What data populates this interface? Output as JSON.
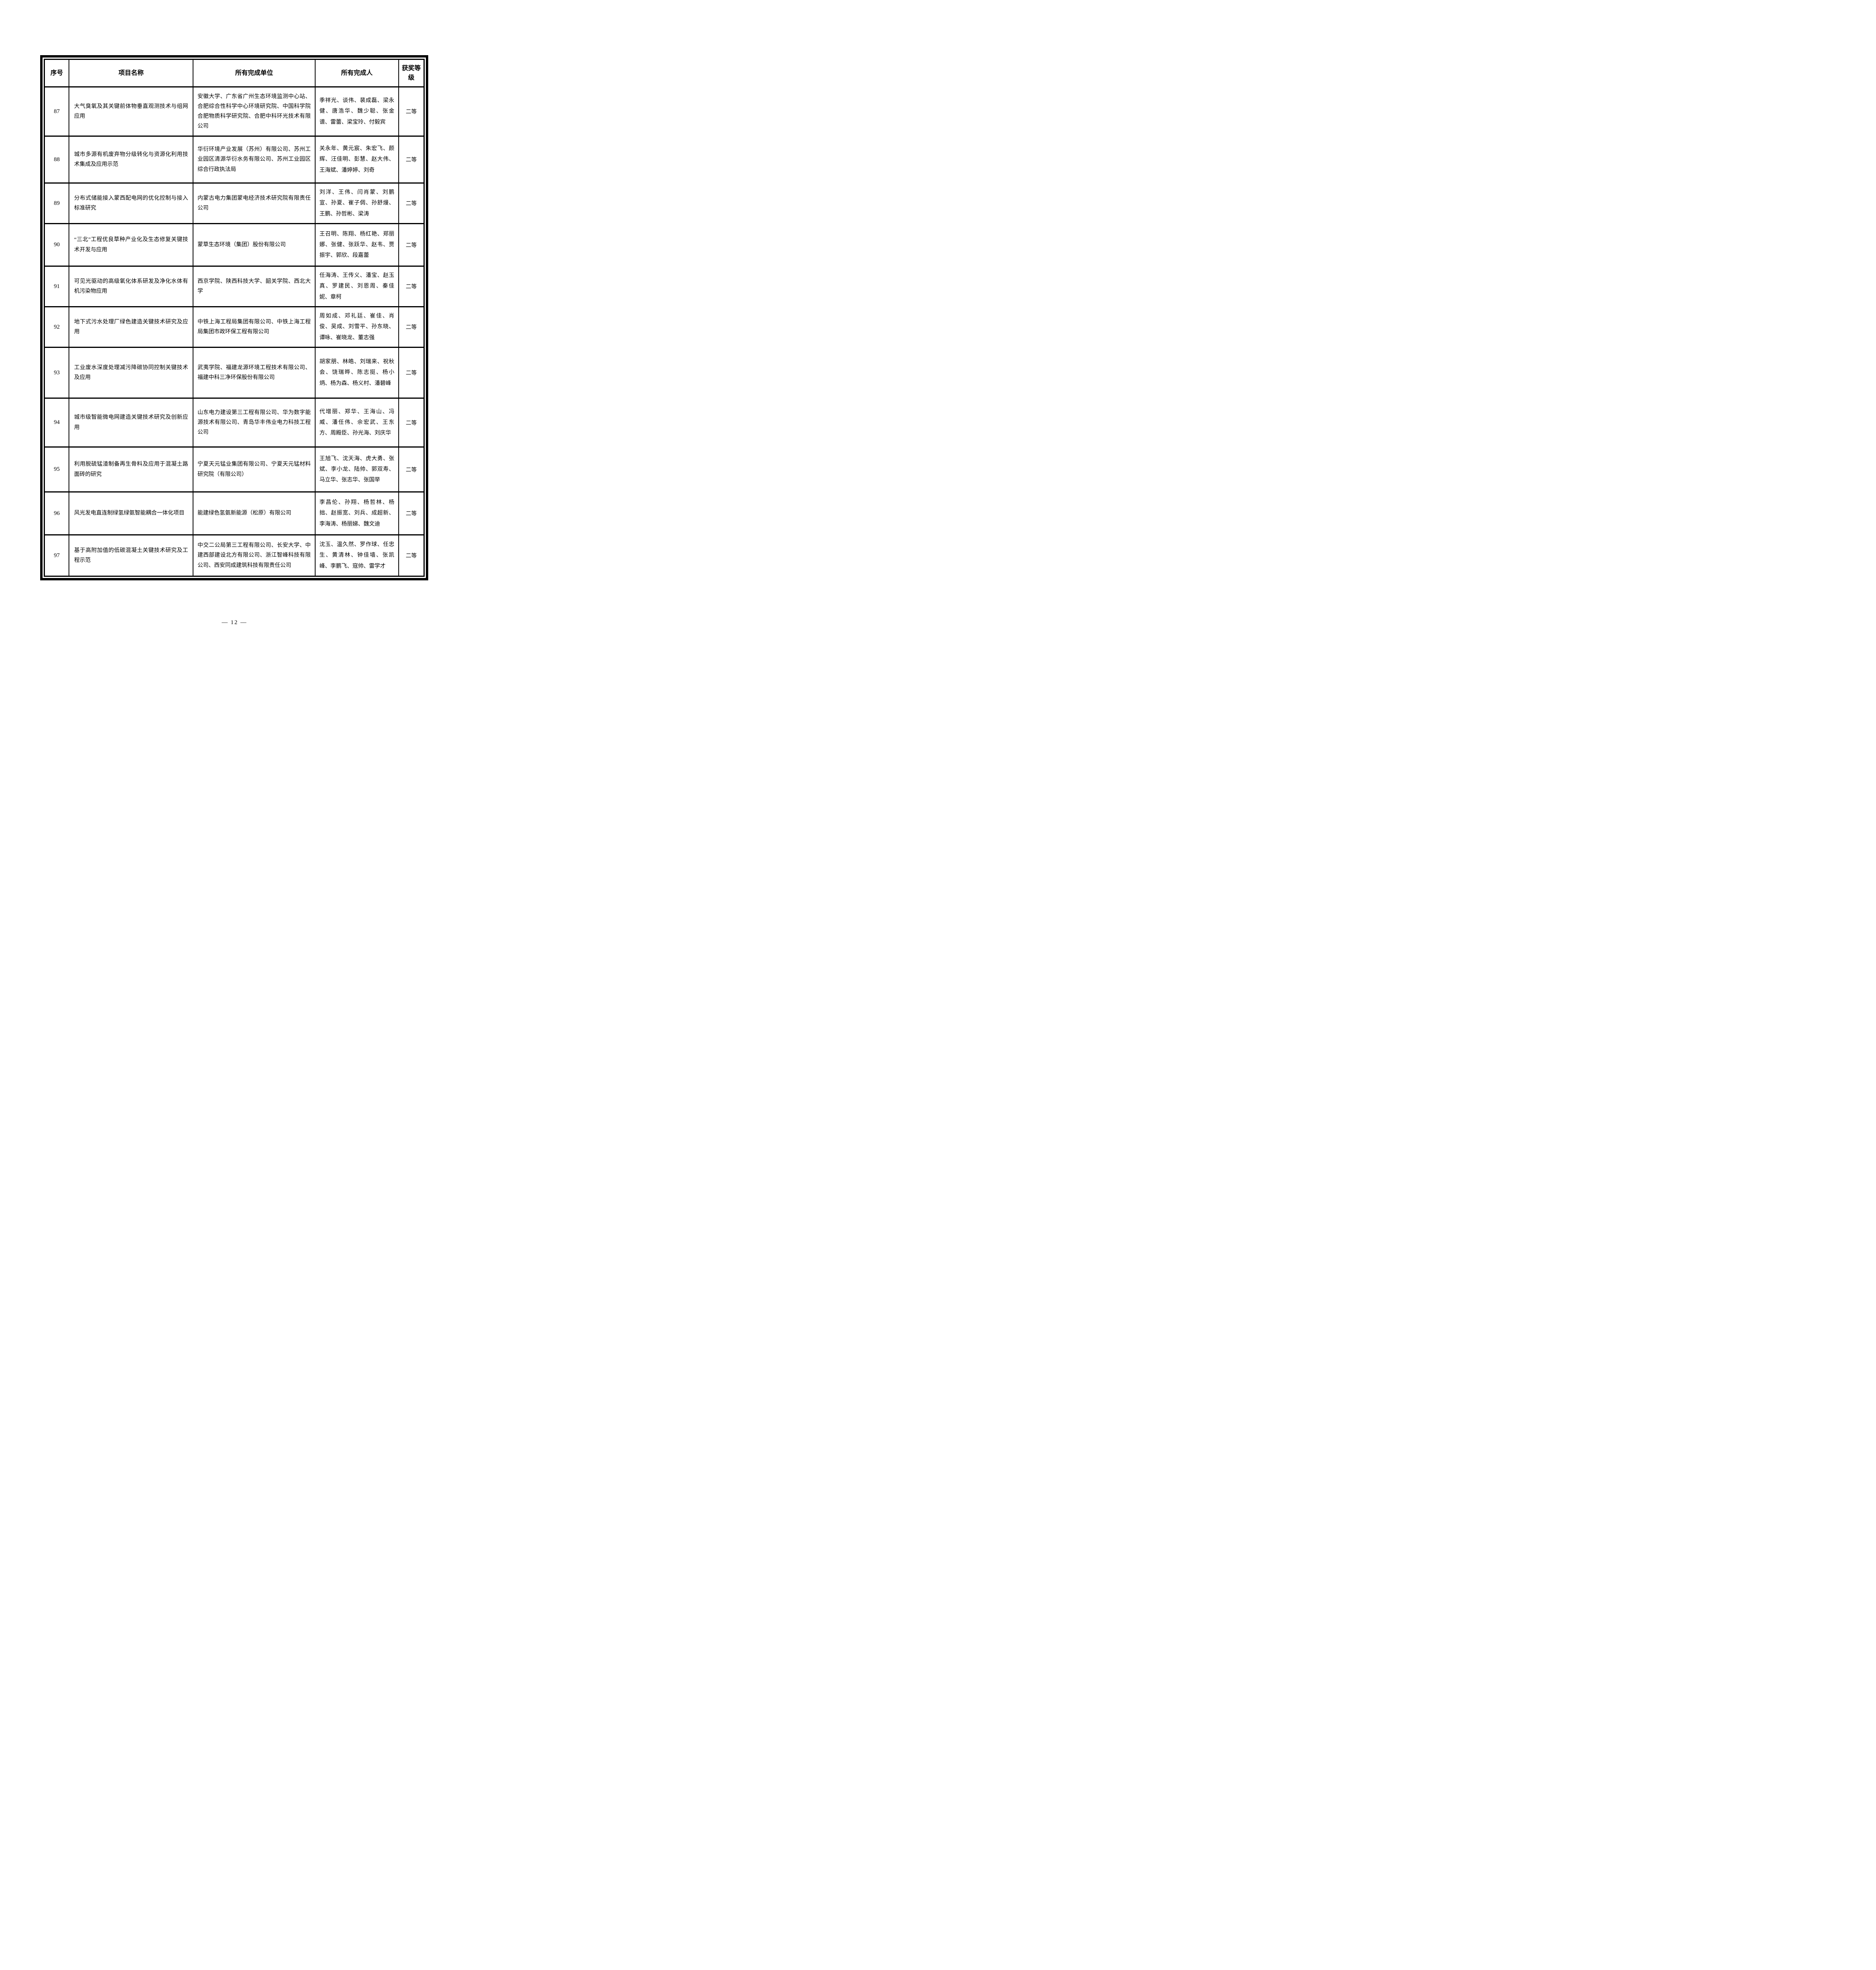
{
  "table": {
    "headers": [
      "序号",
      "项目名称",
      "所有完成单位",
      "所有完成人",
      "获奖等级"
    ],
    "rows": [
      {
        "no": "87",
        "project": "大气臭氧及其关键前体物垂直观测技术与组网应用",
        "units": "安徽大学、广东省广州生态环境监测中心站、合肥综合性科学中心环境研究院、中国科学院合肥物质科学研究院、合肥中科环光技术有限公司",
        "people": "季祥光、谈伟、裴成磊、梁永健、唐浩华、魏少聪、张金谱、雷蕾、梁宝玲、付毅宾",
        "grade": "二等"
      },
      {
        "no": "88",
        "project": "城市多源有机废弃物分级转化与资源化利用技术集成及应用示范",
        "units": "华衍环境产业发展（苏州）有限公司、苏州工业园区清源华衍水务有限公司、苏州工业园区综合行政执法局",
        "people": "关永年、黄元宸、朱宏飞、颜辉、汪佳明、彭慧、赵大伟、王海斌、潘婷婷、刘奇",
        "grade": "二等"
      },
      {
        "no": "89",
        "project": "分布式储能接入蒙西配电网的优化控制与接入标准研究",
        "units": "内蒙古电力集团蒙电经济技术研究院有限责任公司",
        "people": "刘洋、王伟、闫肖蒙、刘鹏宣、孙夏、崔子倜、孙舒熳、王鹏、孙哲彬、梁涛",
        "grade": "二等"
      },
      {
        "no": "90",
        "project": "“三北”工程优良草种产业化及生态修复关键技术开发与应用",
        "units": "蒙草生态环境（集团）股份有限公司",
        "people": "王召明、陈翔、杨红艳、郑丽娜、张健、张跃华、赵韦、贾振宇、郭欣、段嘉蕾",
        "grade": "二等"
      },
      {
        "no": "91",
        "project": "可见光驱动的高级氧化体系研发及净化水体有机污染物应用",
        "units": "西京学院、陕西科技大学、韶关学院、西北大学",
        "people": "任海涛、王传义、潘宝、赵玉真、罗建民、刘恩周、秦佳妮、章柯",
        "grade": "二等"
      },
      {
        "no": "92",
        "project": "地下式污水处理厂绿色建造关键技术研究及应用",
        "units": "中铁上海工程局集团有限公司、中铁上海工程局集团市政环保工程有限公司",
        "people": "周如成、邓礼廷、崔佳、肖俊、吴成、刘雪平、孙东晓、谭咏、崔晓龙、董志强",
        "grade": "二等"
      },
      {
        "no": "93",
        "project": "工业废水深度处理减污降碳协同控制关键技术及应用",
        "units": "武夷学院、福建龙源环境工程技术有限公司、福建中科三净环保股份有限公司",
        "people": "胡家朋、林皓、刘瑞来、祝秋会、饶瑞晔、陈志挺、杨小炳、杨为森、杨义村、潘碧峰",
        "grade": "二等"
      },
      {
        "no": "94",
        "project": "城市级智能微电网建造关键技术研究及创新应用",
        "units": "山东电力建设第三工程有限公司、华为数字能源技术有限公司、青岛华丰伟业电力科技工程公司",
        "people": "代增丽、郑华、王海山、冯威、潘任伟、佘宏武、王东方、周殿臣、孙光海、刘庆华",
        "grade": "二等"
      },
      {
        "no": "95",
        "project": "利用脱硫锰渣制备再生骨料及应用于混凝土路面砖的研究",
        "units": "宁夏天元锰业集团有限公司、宁夏天元锰材料研究院（有限公司）",
        "people": "王旭飞、沈天海、虎大勇、张斌、李小龙、陆帅、郭双寿、马立华、张志华、张国举",
        "grade": "二等"
      },
      {
        "no": "96",
        "project": "风光发电直连制绿氢绿氨智能耦合一体化项目",
        "units": "能建绿色氢氨新能源（松原）有限公司",
        "people": "李昌伦、孙翔、杨哲林、杨拙、赵振宽、刘兵、成超新、李海涛、杨丽娣、魏文迪",
        "grade": "二等"
      },
      {
        "no": "97",
        "project": "基于高附加值的低碳混凝土关键技术研究及工程示范",
        "units": "中交二公局第三工程有限公司、长安大学、中建西部建设北方有限公司、浙江智峰科技有限公司、西安同成建筑科技有限责任公司",
        "people": "沈玉、温久然、罗作球、任忠生、黄清林、钟佳墙、张凯峰、李鹏飞、寇帅、雷学才",
        "grade": "二等"
      }
    ]
  },
  "page": {
    "footer": "— 12 —"
  }
}
